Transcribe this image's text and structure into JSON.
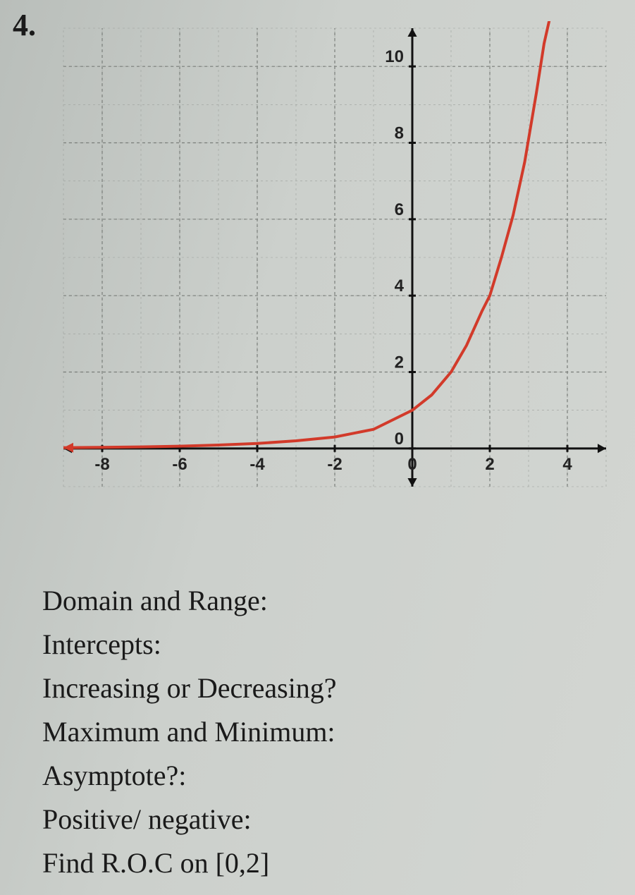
{
  "problem_number": "4.",
  "chart": {
    "type": "line",
    "background_color": "#c9cdc9",
    "grid_color": "#8f938f",
    "grid_style": "dashed",
    "axis_color": "#111111",
    "curve_color": "#d23a2a",
    "curve_width": 4,
    "x_axis": {
      "min": -9,
      "max": 5,
      "major_step": 2,
      "minor_step": 1,
      "tick_labels": [
        "-8",
        "-6",
        "-4",
        "-2",
        "0",
        "2",
        "4"
      ],
      "tick_positions": [
        -8,
        -6,
        -4,
        -2,
        0,
        2,
        4
      ]
    },
    "y_axis": {
      "min": -1,
      "max": 11,
      "major_step": 2,
      "minor_step": 1,
      "tick_labels": [
        "0",
        "2",
        "4",
        "6",
        "8",
        "10"
      ],
      "tick_positions": [
        0,
        2,
        4,
        6,
        8,
        10
      ]
    },
    "curve_points": [
      [
        -9,
        0.02
      ],
      [
        -8,
        0.03
      ],
      [
        -7,
        0.04
      ],
      [
        -6,
        0.06
      ],
      [
        -5,
        0.09
      ],
      [
        -4,
        0.13
      ],
      [
        -3,
        0.2
      ],
      [
        -2,
        0.3
      ],
      [
        -1,
        0.5
      ],
      [
        0,
        1
      ],
      [
        0.5,
        1.4
      ],
      [
        1,
        2
      ],
      [
        1.4,
        2.7
      ],
      [
        1.8,
        3.6
      ],
      [
        2,
        4
      ],
      [
        2.3,
        5
      ],
      [
        2.6,
        6.1
      ],
      [
        2.9,
        7.5
      ],
      [
        3.2,
        9.3
      ],
      [
        3.4,
        10.6
      ],
      [
        3.6,
        11.5
      ]
    ],
    "axis_arrow_size": 12,
    "label_fontsize": 24,
    "label_font": "Arial",
    "label_color": "#222222"
  },
  "questions": [
    "Domain and Range:",
    "Intercepts:",
    "Increasing or Decreasing?",
    "Maximum and Minimum:",
    "Asymptote?:",
    "Positive/ negative:",
    "Find R.O.C on [0,2]"
  ]
}
